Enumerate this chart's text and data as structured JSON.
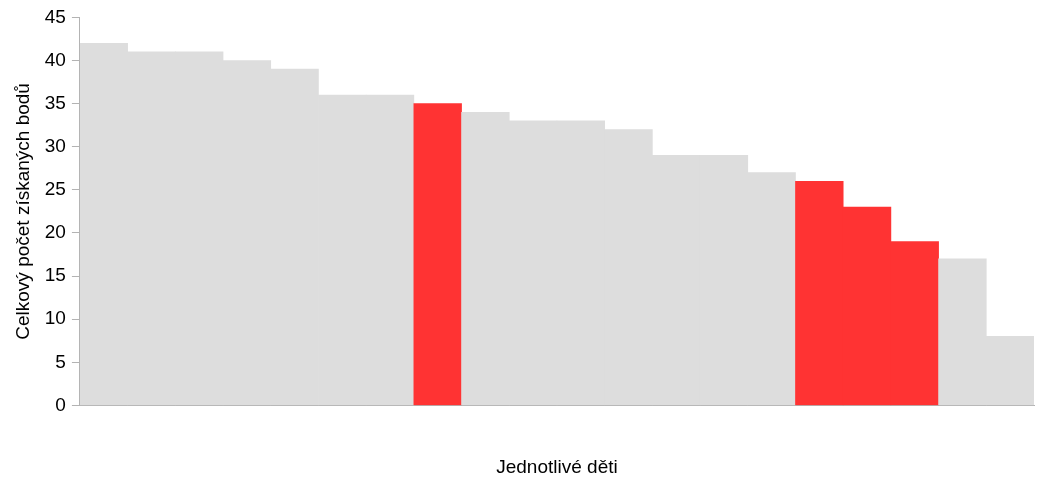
{
  "chart_data": {
    "type": "bar",
    "xlabel": "Jednotlivé děti",
    "ylabel": "Celkový počet získaných bodů",
    "categories": [
      null,
      null,
      null,
      null,
      null,
      null,
      null,
      null,
      null,
      null,
      null,
      null,
      null,
      null,
      null,
      null,
      null,
      null,
      null,
      null
    ],
    "values": [
      42,
      41,
      41,
      40,
      39,
      36,
      36,
      35,
      34,
      33,
      33,
      32,
      29,
      29,
      27,
      26,
      23,
      19,
      17,
      8
    ],
    "colors": [
      "#dddddd",
      "#dddddd",
      "#dddddd",
      "#dddddd",
      "#dddddd",
      "#dddddd",
      "#dddddd",
      "#ff3333",
      "#dddddd",
      "#dddddd",
      "#dddddd",
      "#dddddd",
      "#dddddd",
      "#dddddd",
      "#dddddd",
      "#ff3333",
      "#ff3333",
      "#ff3333",
      "#dddddd",
      "#dddddd"
    ],
    "ylim": [
      0,
      45
    ],
    "yticks": [
      0,
      5,
      10,
      15,
      20,
      25,
      30,
      35,
      40,
      45
    ],
    "grid": false,
    "legend": false
  }
}
